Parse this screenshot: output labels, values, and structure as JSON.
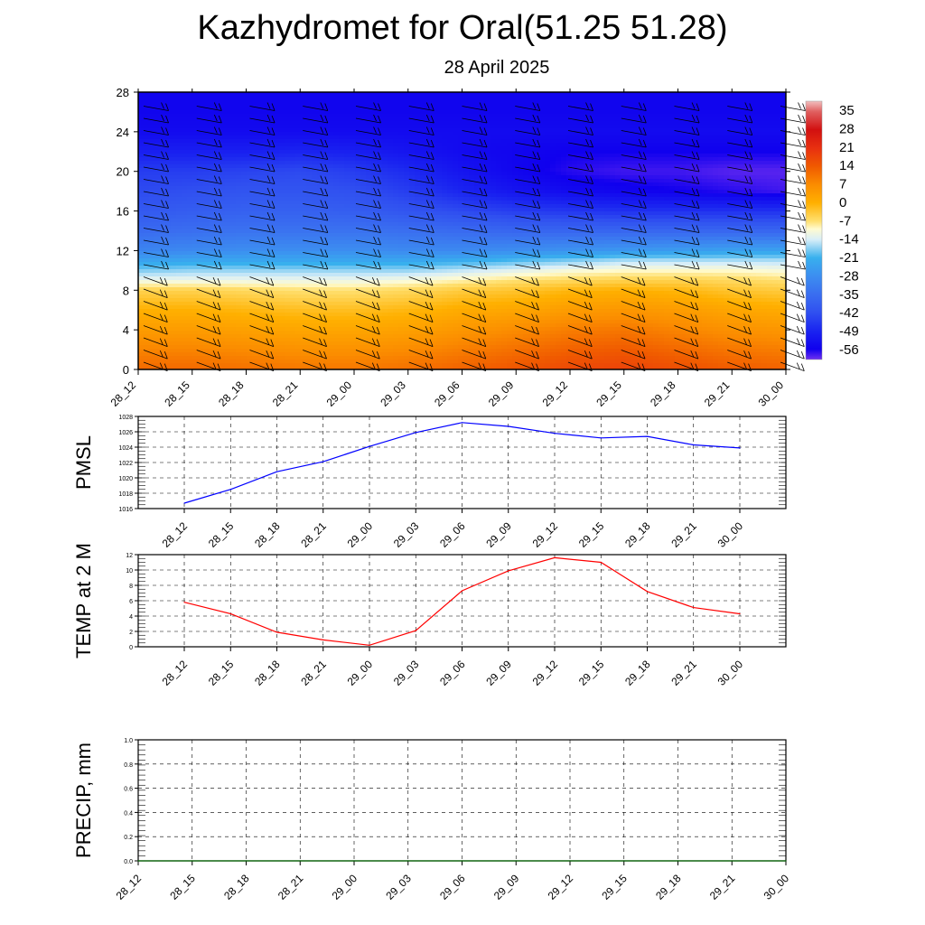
{
  "title": "Kazhydromet for Oral(51.25 51.28)",
  "subtitle": "28 April 2025",
  "chart_data": [
    {
      "type": "heatmap",
      "name": "temperature-cross-section",
      "x_ticks": [
        "28_12",
        "28_15",
        "28_18",
        "28_21",
        "29_00",
        "29_03",
        "29_06",
        "29_09",
        "29_12",
        "29_15",
        "29_18",
        "29_21",
        "30_00"
      ],
      "y_ticks": [
        "0",
        "4",
        "8",
        "12",
        "16",
        "20",
        "24",
        "28"
      ],
      "ylim": [
        0,
        28
      ],
      "colorbar": {
        "labels": [
          "35",
          "28",
          "21",
          "14",
          "7",
          "0",
          "-7",
          "-14",
          "-21",
          "-28",
          "-35",
          "-42",
          "-49",
          "-56"
        ],
        "stops": [
          {
            "v": 39,
            "c": "#f2bfbf"
          },
          {
            "v": 35,
            "c": "#e06060"
          },
          {
            "v": 28,
            "c": "#d21010"
          },
          {
            "v": 21,
            "c": "#e83010"
          },
          {
            "v": 14,
            "c": "#f05a00"
          },
          {
            "v": 7,
            "c": "#fb8c00"
          },
          {
            "v": 0,
            "c": "#ffb000"
          },
          {
            "v": -7,
            "c": "#ffe070"
          },
          {
            "v": -10,
            "c": "#fffbd0"
          },
          {
            "v": -14,
            "c": "#d8eef8"
          },
          {
            "v": -21,
            "c": "#38b0ee"
          },
          {
            "v": -28,
            "c": "#3c8ef0"
          },
          {
            "v": -35,
            "c": "#3a6ef0"
          },
          {
            "v": -42,
            "c": "#3050f0"
          },
          {
            "v": -49,
            "c": "#1a24f0"
          },
          {
            "v": -56,
            "c": "#1000ee"
          },
          {
            "v": -60,
            "c": "#7030f0"
          }
        ]
      },
      "levels": [
        0,
        2,
        4,
        6,
        8,
        9,
        10,
        11,
        12,
        14,
        16,
        18,
        20,
        22,
        24,
        26,
        28
      ],
      "values": [
        [
          12,
          12,
          11,
          10,
          10,
          11,
          13,
          15,
          17,
          18,
          16,
          14,
          13
        ],
        [
          8,
          8,
          7,
          6,
          6,
          7,
          9,
          11,
          13,
          14,
          12,
          10,
          9
        ],
        [
          4,
          4,
          3,
          2,
          2,
          3,
          5,
          7,
          9,
          10,
          8,
          6,
          5
        ],
        [
          0,
          0,
          -1,
          -2,
          -2,
          -1,
          1,
          2,
          4,
          5,
          4,
          2,
          1
        ],
        [
          -5,
          -5,
          -6,
          -7,
          -7,
          -6,
          -4,
          -3,
          -1,
          0,
          -1,
          -3,
          -4
        ],
        [
          -12,
          -12,
          -12,
          -12,
          -12,
          -11,
          -9,
          -7,
          -6,
          -5,
          -5,
          -6,
          -7
        ],
        [
          -18,
          -17,
          -17,
          -17,
          -17,
          -17,
          -15,
          -13,
          -11,
          -10,
          -10,
          -10,
          -11
        ],
        [
          -24,
          -23,
          -23,
          -23,
          -23,
          -23,
          -22,
          -20,
          -18,
          -16,
          -16,
          -16,
          -16
        ],
        [
          -30,
          -29,
          -28,
          -28,
          -28,
          -29,
          -29,
          -28,
          -27,
          -26,
          -25,
          -24,
          -24
        ],
        [
          -36,
          -35,
          -34,
          -34,
          -34,
          -35,
          -36,
          -37,
          -37,
          -37,
          -37,
          -37,
          -37
        ],
        [
          -40,
          -39,
          -38,
          -38,
          -39,
          -41,
          -43,
          -45,
          -46,
          -47,
          -47,
          -47,
          -47
        ],
        [
          -43,
          -42,
          -41,
          -41,
          -42,
          -45,
          -49,
          -52,
          -54,
          -55,
          -56,
          -57,
          -58
        ],
        [
          -45,
          -45,
          -44,
          -43,
          -45,
          -48,
          -52,
          -55,
          -57,
          -58,
          -58,
          -59,
          -59
        ],
        [
          -50,
          -50,
          -50,
          -49,
          -50,
          -52,
          -54,
          -55,
          -56,
          -56,
          -56,
          -56,
          -56
        ],
        [
          -54,
          -54,
          -54,
          -54,
          -54,
          -54,
          -54,
          -54,
          -54,
          -54,
          -54,
          -54,
          -54
        ],
        [
          -55,
          -55,
          -55,
          -55,
          -55,
          -55,
          -55,
          -55,
          -55,
          -55,
          -55,
          -55,
          -55
        ],
        [
          -55,
          -55,
          -55,
          -55,
          -55,
          -55,
          -55,
          -55,
          -55,
          -55,
          -55,
          -55,
          -55
        ]
      ]
    },
    {
      "type": "line",
      "name": "pmsl",
      "ylabel": "PMSL",
      "categories": [
        "28_12",
        "28_15",
        "28_18",
        "28_21",
        "29_00",
        "29_03",
        "29_06",
        "29_09",
        "29_12",
        "29_15",
        "29_18",
        "29_21",
        "30_00"
      ],
      "y_ticks": [
        "1016",
        "1018",
        "1020",
        "1022",
        "1024",
        "1026",
        "1028"
      ],
      "ylim": [
        1016,
        1028
      ],
      "color": "#0000ff",
      "values": [
        1016.7,
        1018.5,
        1020.8,
        1022.1,
        1024.1,
        1025.9,
        1027.2,
        1026.7,
        1025.8,
        1025.2,
        1025.4,
        1024.3,
        1023.9
      ],
      "grid": true
    },
    {
      "type": "line",
      "name": "temp-2m",
      "ylabel": "TEMP at 2 M",
      "categories": [
        "28_12",
        "28_15",
        "28_18",
        "28_21",
        "29_00",
        "29_03",
        "29_06",
        "29_09",
        "29_12",
        "29_15",
        "29_18",
        "29_21",
        "30_00"
      ],
      "y_ticks": [
        "0",
        "2",
        "4",
        "6",
        "8",
        "10",
        "12"
      ],
      "ylim": [
        0,
        12
      ],
      "color": "#ff0000",
      "values": [
        5.8,
        4.3,
        1.9,
        0.9,
        0.2,
        2.1,
        7.3,
        9.9,
        11.6,
        11.0,
        7.2,
        5.1,
        4.3
      ],
      "grid": true
    },
    {
      "type": "line",
      "name": "precip",
      "ylabel": "PRECIP, mm",
      "categories": [
        "28_12",
        "28_15",
        "28_18",
        "28_21",
        "29_00",
        "29_03",
        "29_06",
        "29_09",
        "29_12",
        "29_15",
        "29_18",
        "29_21",
        "30_00"
      ],
      "y_ticks": [
        "0.0",
        "0.2",
        "0.4",
        "0.6",
        "0.8",
        "1.0"
      ],
      "ylim": [
        0,
        1
      ],
      "color": "#006400",
      "values": [
        0,
        0,
        0,
        0,
        0,
        0,
        0,
        0,
        0,
        0,
        0,
        0,
        0
      ],
      "grid": true
    }
  ]
}
